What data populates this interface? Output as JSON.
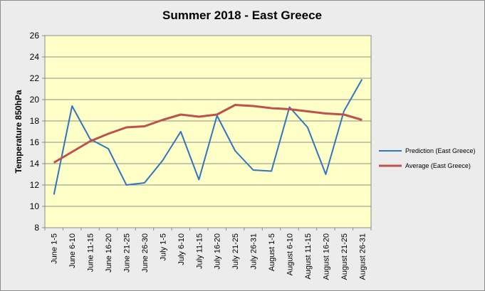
{
  "chart_data": {
    "type": "line",
    "title": "Summer 2018 - East Greece",
    "xlabel": "",
    "ylabel": "Temperature 850hPa",
    "ylim": [
      8,
      26
    ],
    "yticks": [
      8,
      10,
      12,
      14,
      16,
      18,
      20,
      22,
      24,
      26
    ],
    "grid": true,
    "legend_position": "right",
    "plot_background": "#ffffc8",
    "categories": [
      "June 1-5",
      "June 6-10",
      "June 11-15",
      "June 16-20",
      "June 21-25",
      "June 26-30",
      "July 1-5",
      "July 6-10",
      "July 11-15",
      "July 16-20",
      "July 21-25",
      "July 26-31",
      "August 1-5",
      "August 6-10",
      "August 11-15",
      "August 16-20",
      "August 21-25",
      "August 26-31"
    ],
    "series": [
      {
        "name": "Prediction (East Greece)",
        "color": "#2f75c0",
        "values": [
          11.1,
          19.4,
          16.3,
          15.4,
          12.0,
          12.2,
          14.3,
          17.0,
          12.5,
          18.5,
          15.2,
          13.4,
          13.3,
          19.3,
          17.4,
          13.0,
          18.9,
          21.9
        ]
      },
      {
        "name": "Average (East Greece)",
        "color": "#c0504d",
        "values": [
          14.1,
          15.1,
          16.1,
          16.8,
          17.4,
          17.5,
          18.1,
          18.6,
          18.4,
          18.6,
          19.5,
          19.4,
          19.2,
          19.1,
          18.9,
          18.7,
          18.6,
          18.1
        ]
      }
    ]
  }
}
